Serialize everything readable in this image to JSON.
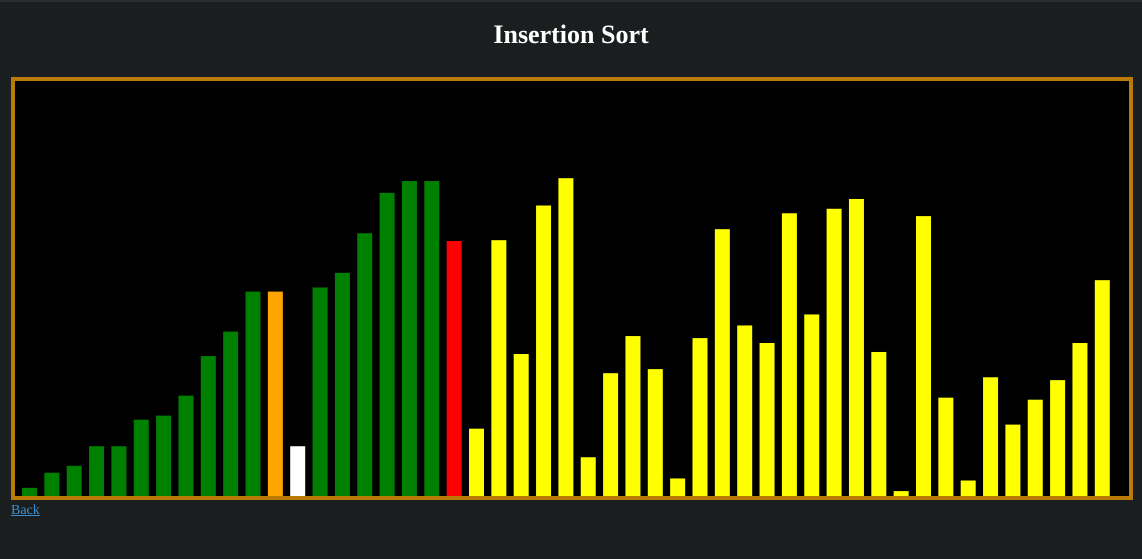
{
  "page": {
    "title": "Insertion Sort",
    "back_label": "Back"
  },
  "colors": {
    "background": "#1b1e1f",
    "frame_border": "#b97a08",
    "canvas": "#000000",
    "sorted": "#008000",
    "unsorted": "#ffff00",
    "current": "#ff0000",
    "compare": "#ffa500",
    "key": "#ffffff",
    "link": "#3d8fd1"
  },
  "chart_data": {
    "type": "bar",
    "ylim": [
      0,
      100
    ],
    "bars": [
      {
        "value": 2.0,
        "state": "sorted"
      },
      {
        "value": 5.7,
        "state": "sorted"
      },
      {
        "value": 7.4,
        "state": "sorted"
      },
      {
        "value": 12.2,
        "state": "sorted"
      },
      {
        "value": 12.2,
        "state": "sorted"
      },
      {
        "value": 18.7,
        "state": "sorted"
      },
      {
        "value": 19.7,
        "state": "sorted"
      },
      {
        "value": 24.6,
        "state": "sorted"
      },
      {
        "value": 34.3,
        "state": "sorted"
      },
      {
        "value": 40.3,
        "state": "sorted"
      },
      {
        "value": 50.1,
        "state": "sorted"
      },
      {
        "value": 50.1,
        "state": "compare"
      },
      {
        "value": 12.2,
        "state": "key"
      },
      {
        "value": 51.1,
        "state": "sorted"
      },
      {
        "value": 54.7,
        "state": "sorted"
      },
      {
        "value": 64.4,
        "state": "sorted"
      },
      {
        "value": 74.3,
        "state": "sorted"
      },
      {
        "value": 77.2,
        "state": "sorted"
      },
      {
        "value": 77.2,
        "state": "sorted"
      },
      {
        "value": 62.5,
        "state": "current"
      },
      {
        "value": 16.5,
        "state": "unsorted"
      },
      {
        "value": 62.7,
        "state": "unsorted"
      },
      {
        "value": 34.8,
        "state": "unsorted"
      },
      {
        "value": 71.2,
        "state": "unsorted"
      },
      {
        "value": 77.9,
        "state": "unsorted"
      },
      {
        "value": 9.5,
        "state": "unsorted"
      },
      {
        "value": 30.1,
        "state": "unsorted"
      },
      {
        "value": 39.2,
        "state": "unsorted"
      },
      {
        "value": 31.1,
        "state": "unsorted"
      },
      {
        "value": 4.3,
        "state": "unsorted"
      },
      {
        "value": 38.7,
        "state": "unsorted"
      },
      {
        "value": 65.4,
        "state": "unsorted"
      },
      {
        "value": 41.8,
        "state": "unsorted"
      },
      {
        "value": 37.5,
        "state": "unsorted"
      },
      {
        "value": 69.3,
        "state": "unsorted"
      },
      {
        "value": 44.5,
        "state": "unsorted"
      },
      {
        "value": 70.4,
        "state": "unsorted"
      },
      {
        "value": 72.8,
        "state": "unsorted"
      },
      {
        "value": 35.3,
        "state": "unsorted"
      },
      {
        "value": 1.2,
        "state": "unsorted"
      },
      {
        "value": 68.6,
        "state": "unsorted"
      },
      {
        "value": 24.1,
        "state": "unsorted"
      },
      {
        "value": 3.8,
        "state": "unsorted"
      },
      {
        "value": 29.1,
        "state": "unsorted"
      },
      {
        "value": 17.5,
        "state": "unsorted"
      },
      {
        "value": 23.6,
        "state": "unsorted"
      },
      {
        "value": 28.4,
        "state": "unsorted"
      },
      {
        "value": 37.5,
        "state": "unsorted"
      },
      {
        "value": 52.9,
        "state": "unsorted"
      }
    ]
  }
}
